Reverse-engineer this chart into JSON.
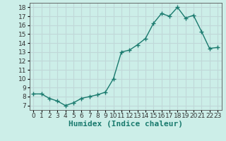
{
  "x": [
    0,
    1,
    2,
    3,
    4,
    5,
    6,
    7,
    8,
    9,
    10,
    11,
    12,
    13,
    14,
    15,
    16,
    17,
    18,
    19,
    20,
    21,
    22,
    23
  ],
  "y": [
    8.3,
    8.3,
    7.8,
    7.5,
    7.0,
    7.3,
    7.8,
    8.0,
    8.2,
    8.5,
    10.0,
    13.0,
    13.2,
    13.8,
    14.5,
    16.2,
    17.3,
    17.0,
    18.0,
    16.8,
    17.1,
    15.3,
    13.4,
    13.5
  ],
  "line_color": "#1a7a6e",
  "marker": "+",
  "marker_size": 4,
  "background_color": "#cceee8",
  "grid_color": "#c0d8d8",
  "xlabel": "Humidex (Indice chaleur)",
  "xlabel_fontsize": 8,
  "xlim": [
    -0.5,
    23.5
  ],
  "ylim": [
    6.5,
    18.5
  ],
  "yticks": [
    7,
    8,
    9,
    10,
    11,
    12,
    13,
    14,
    15,
    16,
    17,
    18
  ],
  "xticks": [
    0,
    1,
    2,
    3,
    4,
    5,
    6,
    7,
    8,
    9,
    10,
    11,
    12,
    13,
    14,
    15,
    16,
    17,
    18,
    19,
    20,
    21,
    22,
    23
  ],
  "tick_fontsize": 6.5,
  "line_width": 1.0
}
